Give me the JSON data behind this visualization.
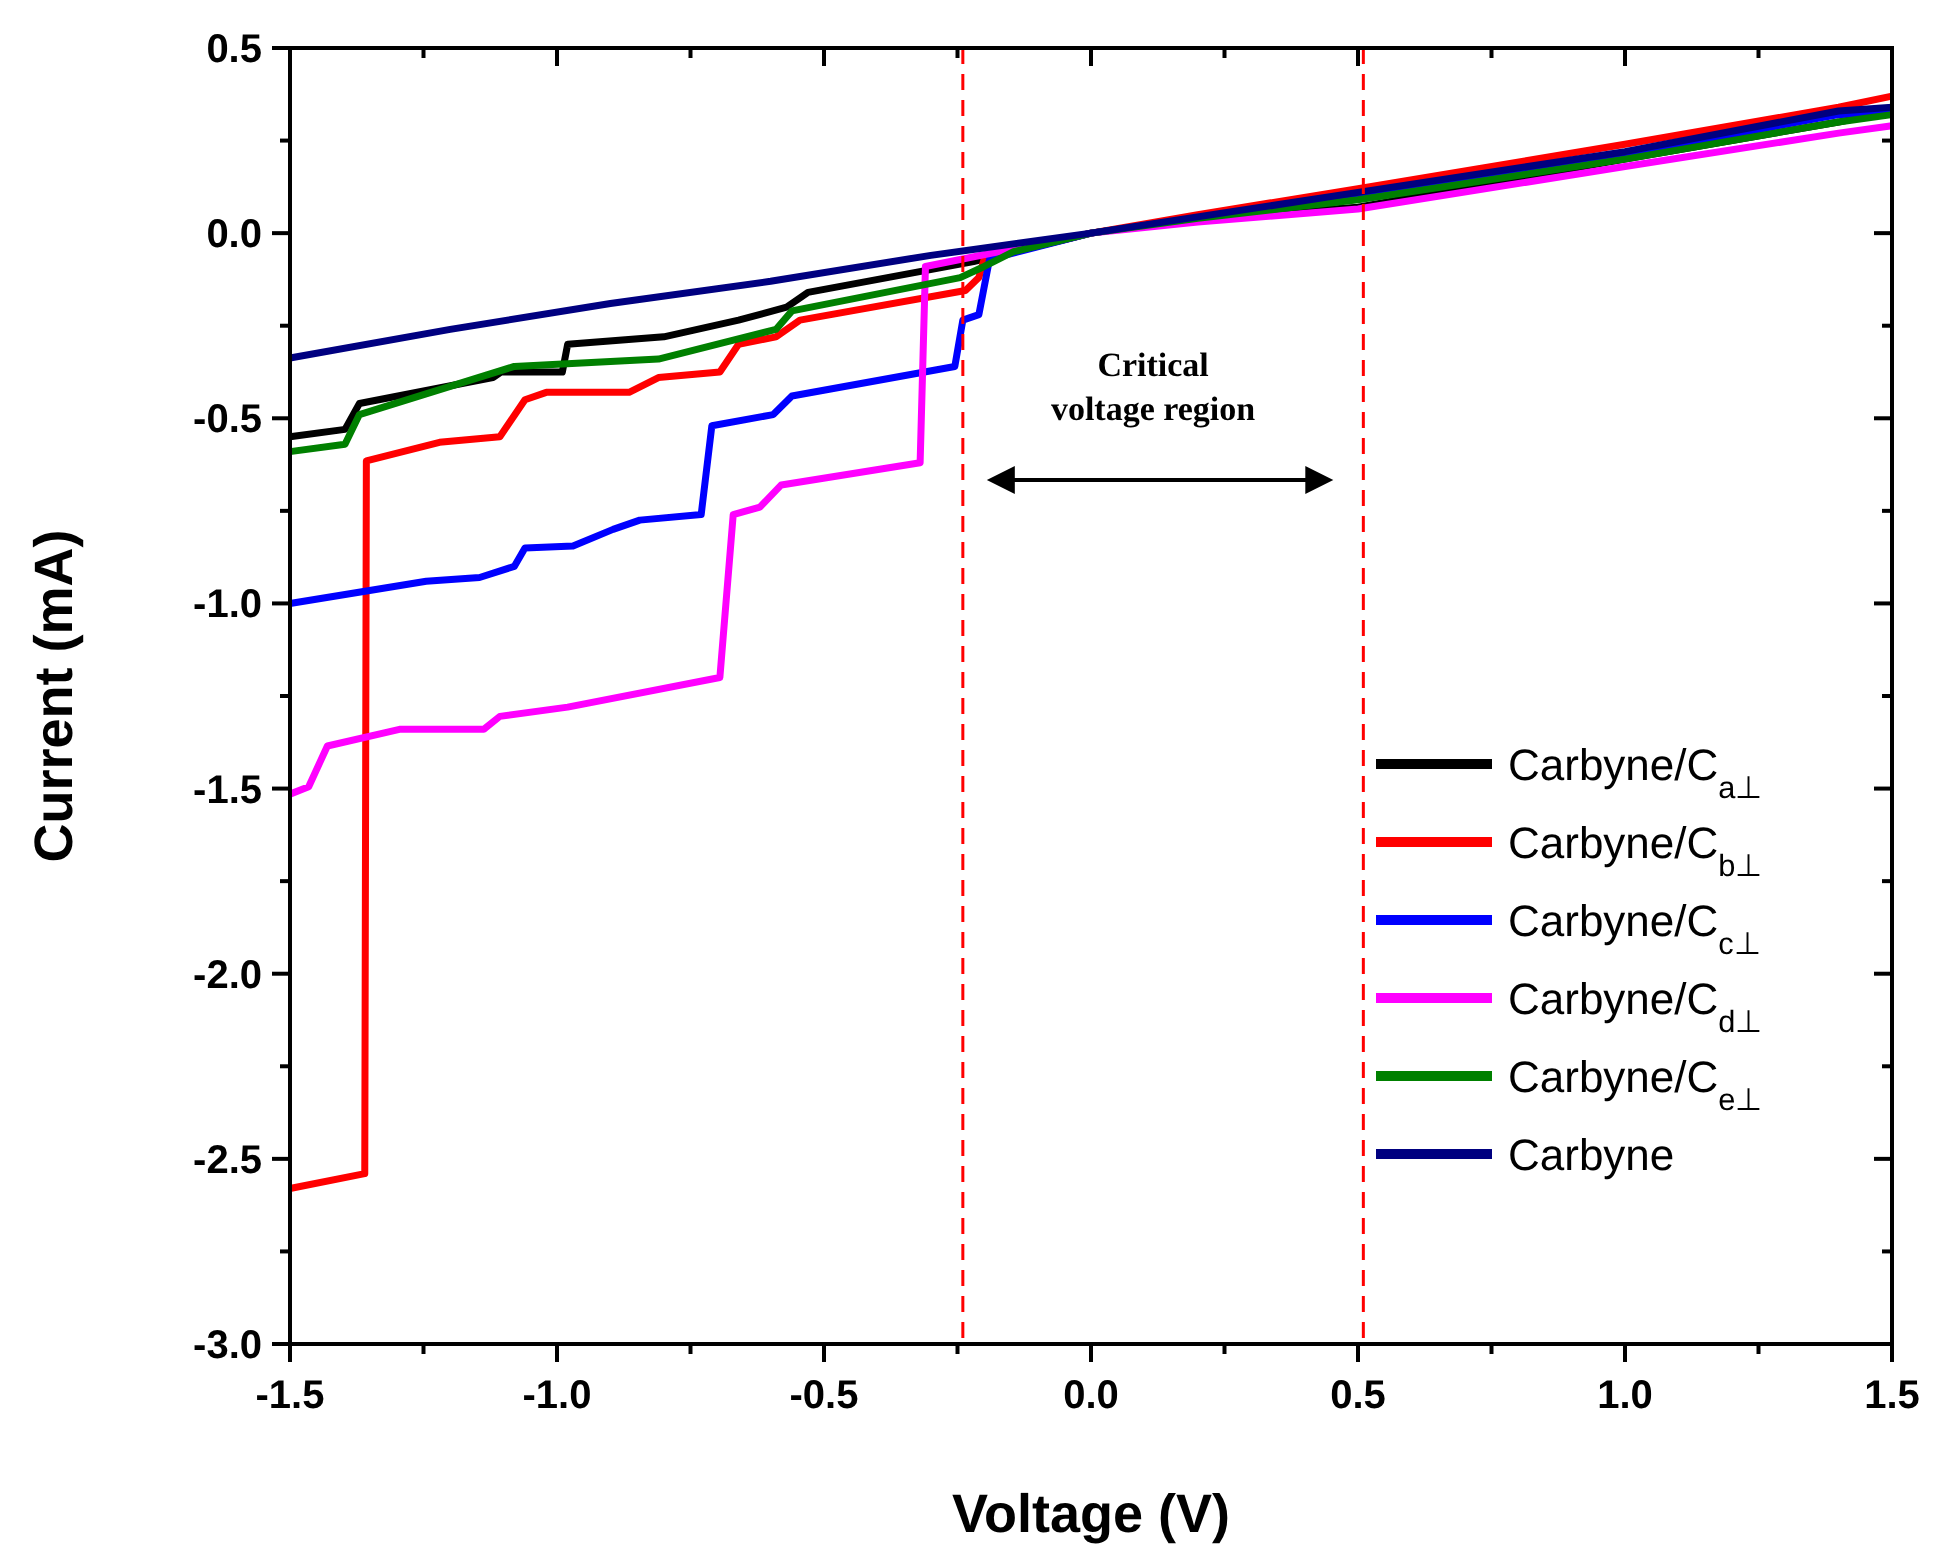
{
  "chart_data": {
    "type": "line",
    "xlabel": "Voltage (V)",
    "ylabel": "Current (mA)",
    "xlim": [
      -1.5,
      1.5
    ],
    "ylim": [
      -3.0,
      0.5
    ],
    "xticks": [
      {
        "value": -1.5,
        "label": "-1.5"
      },
      {
        "value": -1.25,
        "label": null
      },
      {
        "value": -1.0,
        "label": "-1.0"
      },
      {
        "value": -0.75,
        "label": null
      },
      {
        "value": -0.5,
        "label": "-0.5"
      },
      {
        "value": -0.25,
        "label": null
      },
      {
        "value": 0,
        "label": "0.0"
      },
      {
        "value": 0.25,
        "label": null
      },
      {
        "value": 0.5,
        "label": "0.5"
      },
      {
        "value": 0.75,
        "label": null
      },
      {
        "value": 1.0,
        "label": "1.0"
      },
      {
        "value": 1.25,
        "label": null
      },
      {
        "value": 1.5,
        "label": "1.5"
      }
    ],
    "yticks": [
      {
        "value": -3.0,
        "label": "-3.0"
      },
      {
        "value": -2.75,
        "label": null
      },
      {
        "value": -2.5,
        "label": "-2.5"
      },
      {
        "value": -2.25,
        "label": null
      },
      {
        "value": -2.0,
        "label": "-2.0"
      },
      {
        "value": -1.75,
        "label": null
      },
      {
        "value": -1.5,
        "label": "-1.5"
      },
      {
        "value": -1.25,
        "label": null
      },
      {
        "value": -1.0,
        "label": "-1.0"
      },
      {
        "value": -0.75,
        "label": null
      },
      {
        "value": -0.5,
        "label": "-0.5"
      },
      {
        "value": -0.25,
        "label": null
      },
      {
        "value": 0,
        "label": "0.0"
      },
      {
        "value": 0.25,
        "label": null
      },
      {
        "value": 0.5,
        "label": "0.5"
      }
    ],
    "grid": false,
    "legend": "right",
    "marker": "none",
    "line_style": "solid",
    "ref_lines": [
      {
        "axis": "x",
        "value": -0.24,
        "color": "#ff0000",
        "line_style": "dashed"
      },
      {
        "axis": "x",
        "value": 0.51,
        "color": "#ff0000",
        "line_style": "dashed"
      }
    ],
    "annotations": [
      "Critical\nvoltage region"
    ],
    "series": [
      {
        "name": "Carbyne/C$_{a⊥}$",
        "color": "#000000",
        "x": [
          -1.5,
          -1.397,
          -1.37,
          -1.12,
          -1.105,
          -0.99,
          -0.98,
          -0.8,
          -0.66,
          -0.57,
          -0.53,
          -0.22,
          0,
          0.2,
          0.5,
          1.0,
          1.4,
          1.5
        ],
        "values": [
          -0.55,
          -0.53,
          -0.46,
          -0.39,
          -0.375,
          -0.375,
          -0.3,
          -0.28,
          -0.235,
          -0.2,
          -0.16,
          -0.077,
          0,
          0.04,
          0.07,
          0.2,
          0.3,
          0.33
        ]
      },
      {
        "name": "Carbyne/C$_{b⊥}$",
        "color": "#ff0000",
        "x": [
          -1.5,
          -1.36,
          -1.357,
          -1.22,
          -1.107,
          -1.06,
          -1.02,
          -0.865,
          -0.81,
          -0.695,
          -0.66,
          -0.59,
          -0.545,
          -0.235,
          -0.21,
          -0.2,
          0,
          0.2,
          0.5,
          1.0,
          1.4,
          1.5
        ],
        "values": [
          -2.58,
          -2.54,
          -0.615,
          -0.565,
          -0.55,
          -0.45,
          -0.43,
          -0.43,
          -0.39,
          -0.375,
          -0.3,
          -0.28,
          -0.235,
          -0.155,
          -0.12,
          -0.07,
          0,
          0.05,
          0.12,
          0.24,
          0.34,
          0.37
        ]
      },
      {
        "name": "Carbyne/C$_{c⊥}$",
        "color": "#0000ff",
        "x": [
          -1.5,
          -1.245,
          -1.145,
          -1.08,
          -1.06,
          -0.97,
          -0.895,
          -0.845,
          -0.73,
          -0.71,
          -0.595,
          -0.56,
          -0.255,
          -0.24,
          -0.21,
          -0.19,
          0,
          0.2,
          0.5,
          1.0,
          1.4,
          1.5
        ],
        "values": [
          -1.0,
          -0.94,
          -0.93,
          -0.9,
          -0.85,
          -0.845,
          -0.8,
          -0.775,
          -0.76,
          -0.52,
          -0.49,
          -0.44,
          -0.36,
          -0.235,
          -0.22,
          -0.07,
          0,
          0.04,
          0.1,
          0.215,
          0.32,
          0.33
        ]
      },
      {
        "name": "Carbyne/C$_{d⊥}$",
        "color": "#ff00ff",
        "x": [
          -1.5,
          -1.465,
          -1.43,
          -1.295,
          -1.137,
          -1.107,
          -0.98,
          -0.695,
          -0.67,
          -0.62,
          -0.58,
          -0.32,
          -0.31,
          0,
          0.2,
          0.5,
          1.0,
          1.4,
          1.5
        ],
        "values": [
          -1.515,
          -1.495,
          -1.385,
          -1.34,
          -1.34,
          -1.305,
          -1.28,
          -1.2,
          -0.76,
          -0.74,
          -0.68,
          -0.62,
          -0.09,
          0,
          0.03,
          0.065,
          0.18,
          0.27,
          0.29
        ]
      },
      {
        "name": "Carbyne/C$_{e⊥}$",
        "color": "#008000",
        "x": [
          -1.5,
          -1.397,
          -1.37,
          -1.08,
          -0.81,
          -0.59,
          -0.56,
          -0.245,
          -0.2,
          -0.145,
          0,
          0.2,
          0.5,
          1.0,
          1.4,
          1.5
        ],
        "values": [
          -0.59,
          -0.57,
          -0.49,
          -0.36,
          -0.34,
          -0.26,
          -0.21,
          -0.12,
          -0.09,
          -0.05,
          0,
          0.04,
          0.09,
          0.2,
          0.3,
          0.32
        ]
      },
      {
        "name": "Carbyne",
        "color": "#000080",
        "x": [
          -1.5,
          -1.2,
          -0.9,
          -0.6,
          -0.3,
          0,
          0.5,
          1.0,
          1.4,
          1.5
        ],
        "values": [
          -0.337,
          -0.26,
          -0.19,
          -0.13,
          -0.06,
          0,
          0.11,
          0.22,
          0.33,
          0.34
        ]
      }
    ]
  }
}
